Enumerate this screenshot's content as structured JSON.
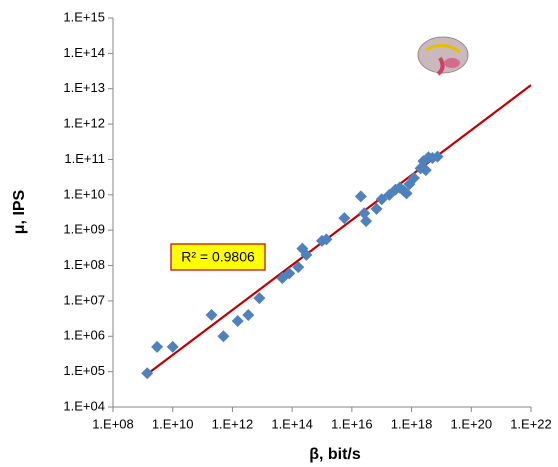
{
  "chart_data": {
    "type": "scatter",
    "x_label": "β, bit/s",
    "y_label": "μ, IPS",
    "log_x": true,
    "log_y": true,
    "color": "#4f81bd",
    "x": [
      1400000000.0,
      3000000000.0,
      10000000000.0,
      200000000000.0,
      500000000000.0,
      1500000000000.0,
      3400000000000.0,
      8000000000000.0,
      47000000000000.0,
      80000000000000.0,
      160000000000000.0,
      220000000000000.0,
      300000000000000.0,
      1000000000000000.0,
      1400000000000000.0,
      5600000000000000.0,
      2e+16,
      2.6e+16,
      3e+16,
      6.7e+16,
      1e+17,
      1.8e+17,
      2.9e+17,
      4e+17,
      5.4e+17,
      6.8e+17,
      8.5e+17,
      1.2e+18,
      2e+18,
      2.5e+18,
      3e+18,
      3.7e+18,
      5e+18,
      7.4e+18
    ],
    "values": [
      90000.0,
      500000.0,
      500000.0,
      4000000.0,
      1000000.0,
      2700000.0,
      4000000.0,
      12000000.0,
      44000000.0,
      60000000.0,
      90000000.0,
      300000000.0,
      200000000.0,
      500000000.0,
      550000000.0,
      2200000000.0,
      9000000000.0,
      3000000000.0,
      1800000000.0,
      4000000000.0,
      7500000000.0,
      10000000000.0,
      14000000000.0,
      16000000000.0,
      13000000000.0,
      11000000000.0,
      20000000000.0,
      30000000000.0,
      56000000000.0,
      90000000000.0,
      50000000000.0,
      115000000000.0,
      110000000000.0,
      120000000000.0
    ],
    "trendline": {
      "x": [
        1400000000.0,
        1e+22
      ],
      "values": [
        85000.0,
        12600000000000.0
      ],
      "color": "#c00000"
    },
    "annotation": "R² = 0.9806",
    "xlim": [
      100000000.0,
      1e+22
    ],
    "ylim": [
      10000.0,
      1000000000000000.0
    ],
    "xticks": [
      {
        "value": 100000000.0,
        "label": "1.E+08"
      },
      {
        "value": 10000000000.0,
        "label": "1.E+10"
      },
      {
        "value": 1000000000000.0,
        "label": "1.E+12"
      },
      {
        "value": 100000000000000.0,
        "label": "1.E+14"
      },
      {
        "value": 1e+16,
        "label": "1.E+16"
      },
      {
        "value": 1e+18,
        "label": "1.E+18"
      },
      {
        "value": 1e+20,
        "label": "1.E+20"
      },
      {
        "value": 1e+22,
        "label": "1.E+22"
      }
    ],
    "yticks": [
      {
        "value": 10000.0,
        "label": "1.E+04"
      },
      {
        "value": 100000.0,
        "label": "1.E+05"
      },
      {
        "value": 1000000.0,
        "label": "1.E+06"
      },
      {
        "value": 10000000.0,
        "label": "1.E+07"
      },
      {
        "value": 100000000.0,
        "label": "1.E+08"
      },
      {
        "value": 1000000000.0,
        "label": "1.E+09"
      },
      {
        "value": 10000000000.0,
        "label": "1.E+10"
      },
      {
        "value": 100000000000.0,
        "label": "1.E+11"
      },
      {
        "value": 1000000000000.0,
        "label": "1.E+12"
      },
      {
        "value": 10000000000000.0,
        "label": "1.E+13"
      },
      {
        "value": 100000000000000.0,
        "label": "1.E+14"
      },
      {
        "value": 1000000000000000.0,
        "label": "1.E+15"
      }
    ]
  }
}
